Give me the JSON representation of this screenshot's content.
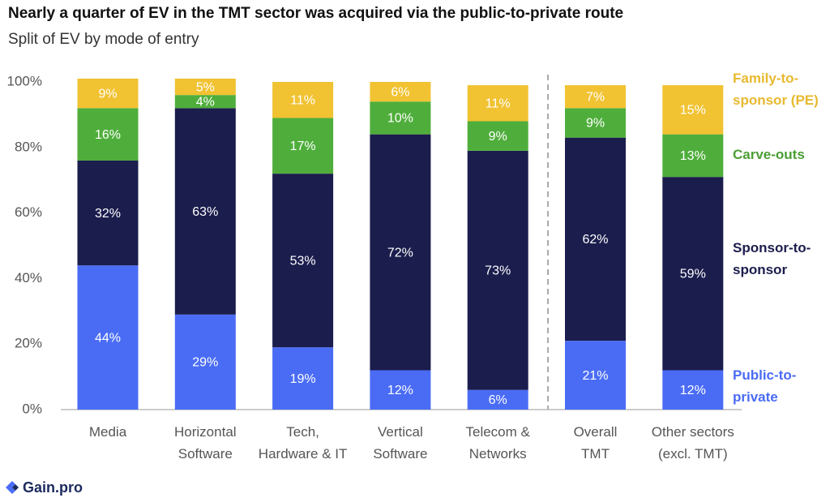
{
  "chart_data": {
    "type": "stacked_bar",
    "title": "Nearly a quarter of EV in the TMT sector was acquired via the public-to-private route",
    "subtitle": "Split of EV by mode of entry",
    "categories": [
      "Media",
      "Horizontal\nSoftware",
      "Tech,\nHardware & IT",
      "Vertical\nSoftware",
      "Telecom &\nNetworks",
      "Overall\nTMT",
      "Other sectors\n(excl. TMT)"
    ],
    "series": [
      {
        "name": "Public-to-\nprivate",
        "color": "#4a6cf5",
        "values": [
          44,
          29,
          19,
          12,
          6,
          21,
          12
        ],
        "value_labels": [
          "44%",
          "29%",
          "19%",
          "12%",
          "6%",
          "21%",
          "12%"
        ]
      },
      {
        "name": "Sponsor-to-\nsponsor",
        "color": "#1b1d4d",
        "values": [
          32,
          63,
          53,
          72,
          73,
          62,
          59
        ],
        "value_labels": [
          "32%",
          "63%",
          "53%",
          "72%",
          "73%",
          "62%",
          "59%"
        ]
      },
      {
        "name": "Carve-outs",
        "color": "#4fae3b",
        "values": [
          16,
          4,
          17,
          10,
          9,
          9,
          13
        ],
        "value_labels": [
          "16%",
          "4%",
          "17%",
          "10%",
          "9%",
          "9%",
          "13%"
        ]
      },
      {
        "name": "Family-to-\nsponsor (PE)",
        "color": "#f1c232",
        "values": [
          9,
          5,
          11,
          6,
          11,
          7,
          15
        ],
        "value_labels": [
          "9%",
          "5%",
          "11%",
          "6%",
          "11%",
          "7%",
          "15%"
        ]
      }
    ],
    "ylim": [
      0,
      100
    ],
    "yticks": [
      {
        "value": 0,
        "label": "0%"
      },
      {
        "value": 20,
        "label": "20%"
      },
      {
        "value": 40,
        "label": "40%"
      },
      {
        "value": 60,
        "label": "60%"
      },
      {
        "value": 80,
        "label": "80%"
      },
      {
        "value": 100,
        "label": "100%"
      }
    ],
    "grid": false
  },
  "footer": "Gain.pro"
}
